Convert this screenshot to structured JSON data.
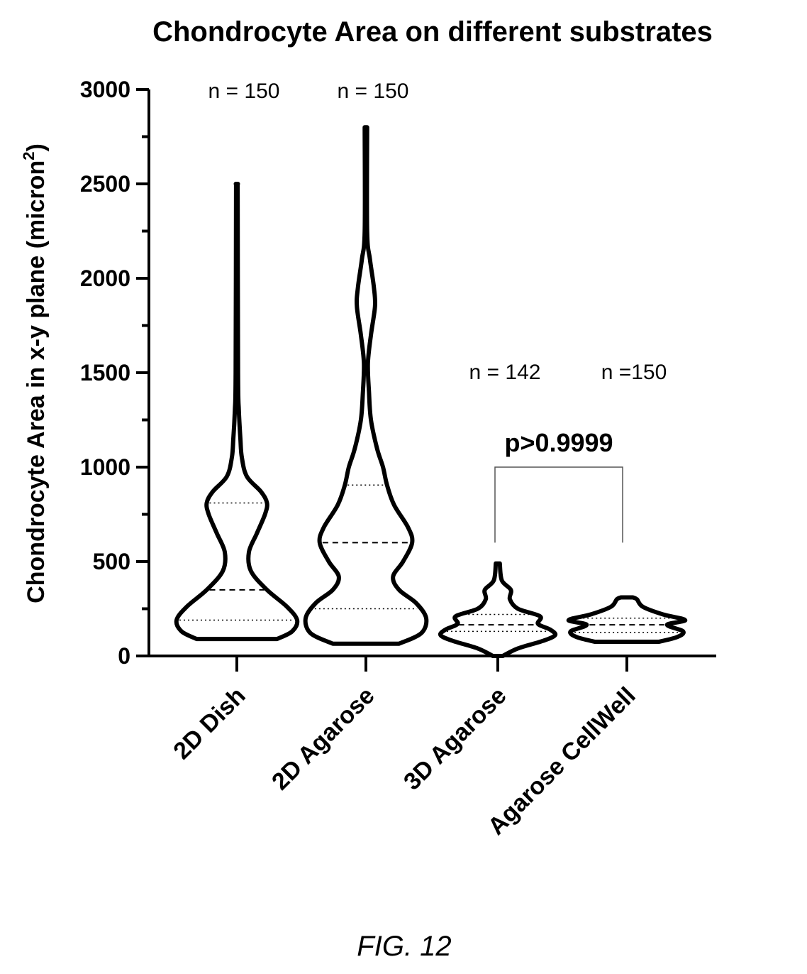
{
  "figure_label": "FIG. 12",
  "chart_data": {
    "type": "violin",
    "title": "Chondrocyte Area on different substrates",
    "ylabel": "Chondrocyte Area in x-y plane (micron",
    "ylabel_superscript": "2",
    "ylabel_close": ")",
    "ylim": [
      0,
      3000
    ],
    "yticks": [
      0,
      500,
      1000,
      1500,
      2000,
      2500,
      3000
    ],
    "ytick_labels": [
      "0",
      "500",
      "1000",
      "1500",
      "2000",
      "2500",
      "3000"
    ],
    "categories": [
      "2D Dish",
      "2D Agarose",
      "3D Agarose",
      "Agarose CellWell"
    ],
    "series": [
      {
        "category": "2D Dish",
        "n_label": "n = 150",
        "min": 90,
        "max": 2500,
        "q1": 190,
        "median": 350,
        "q3": 810,
        "density": [
          [
            90,
            0.4
          ],
          [
            130,
            0.55
          ],
          [
            190,
            0.6
          ],
          [
            260,
            0.5
          ],
          [
            350,
            0.3
          ],
          [
            450,
            0.14
          ],
          [
            550,
            0.12
          ],
          [
            650,
            0.2
          ],
          [
            750,
            0.28
          ],
          [
            810,
            0.3
          ],
          [
            870,
            0.24
          ],
          [
            950,
            0.1
          ],
          [
            1050,
            0.05
          ],
          [
            1150,
            0.035
          ],
          [
            1300,
            0.02
          ],
          [
            1500,
            0.012
          ],
          [
            2500,
            0.008
          ]
        ]
      },
      {
        "category": "2D Agarose",
        "n_label": "n = 150",
        "min": 65,
        "max": 2800,
        "q1": 250,
        "median": 600,
        "q3": 905,
        "density": [
          [
            65,
            0.33
          ],
          [
            120,
            0.55
          ],
          [
            200,
            0.6
          ],
          [
            280,
            0.5
          ],
          [
            350,
            0.33
          ],
          [
            420,
            0.27
          ],
          [
            500,
            0.37
          ],
          [
            600,
            0.46
          ],
          [
            680,
            0.42
          ],
          [
            800,
            0.28
          ],
          [
            905,
            0.21
          ],
          [
            1000,
            0.17
          ],
          [
            1100,
            0.11
          ],
          [
            1250,
            0.05
          ],
          [
            1400,
            0.03
          ],
          [
            1550,
            0.02
          ],
          [
            1700,
            0.05
          ],
          [
            1850,
            0.09
          ],
          [
            1950,
            0.08
          ],
          [
            2100,
            0.04
          ],
          [
            2250,
            0.012
          ],
          [
            2800,
            0.012
          ]
        ]
      },
      {
        "category": "3D Agarose",
        "n_label": "n = 142",
        "min": 0,
        "max": 490,
        "q1": 130,
        "median": 165,
        "q3": 220,
        "density": [
          [
            0,
            0.05
          ],
          [
            40,
            0.2
          ],
          [
            80,
            0.45
          ],
          [
            110,
            0.57
          ],
          [
            140,
            0.52
          ],
          [
            170,
            0.4
          ],
          [
            210,
            0.42
          ],
          [
            250,
            0.2
          ],
          [
            300,
            0.12
          ],
          [
            350,
            0.13
          ],
          [
            400,
            0.04
          ],
          [
            490,
            0.02
          ]
        ]
      },
      {
        "category": "Agarose CellWell",
        "n_label": "n =150",
        "min": 75,
        "max": 310,
        "q1": 125,
        "median": 165,
        "q3": 200,
        "density": [
          [
            75,
            0.32
          ],
          [
            100,
            0.5
          ],
          [
            130,
            0.56
          ],
          [
            165,
            0.4
          ],
          [
            190,
            0.58
          ],
          [
            220,
            0.36
          ],
          [
            260,
            0.16
          ],
          [
            300,
            0.1
          ],
          [
            310,
            0.06
          ]
        ]
      }
    ],
    "annotations": [
      {
        "text": "p>0.9999",
        "between": [
          "3D Agarose",
          "Agarose CellWell"
        ]
      }
    ]
  }
}
